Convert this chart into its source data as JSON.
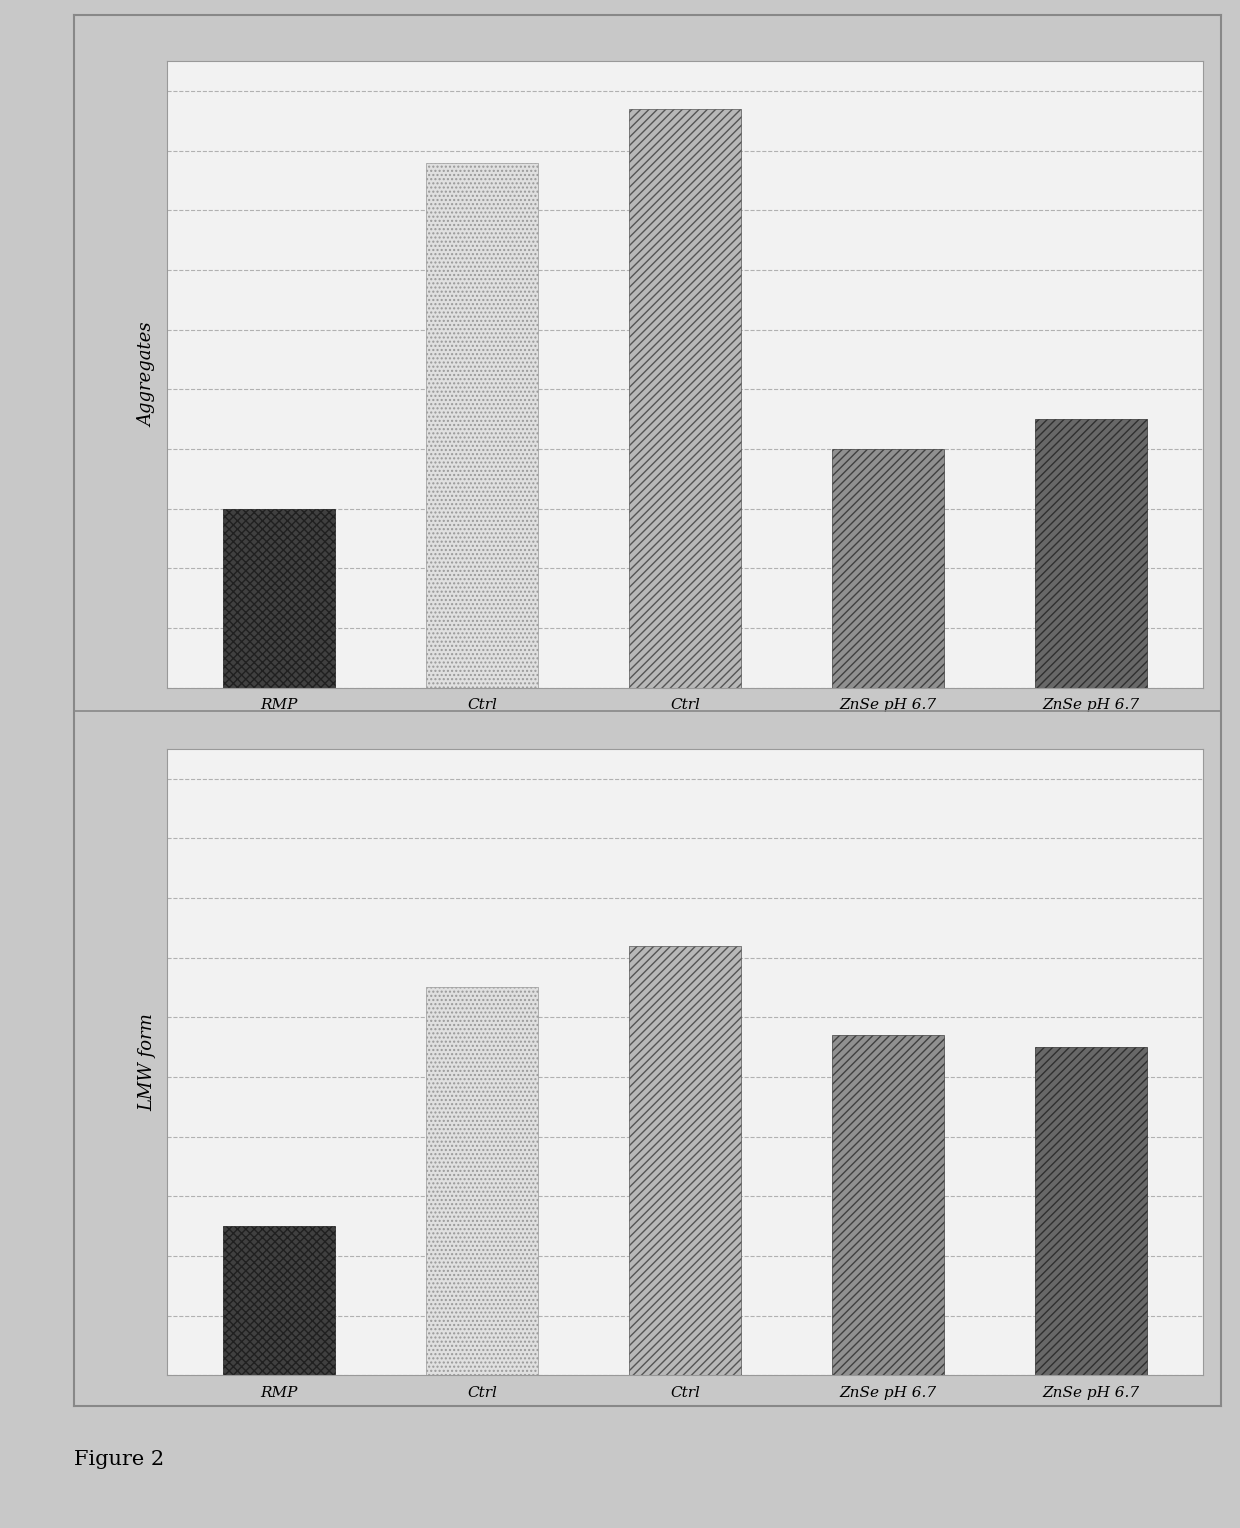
{
  "chart1": {
    "categories": [
      "RMP",
      "Ctrl",
      "Ctrl",
      "ZnSe pH 6.7",
      "ZnSe pH 6.7"
    ],
    "values": [
      0.3,
      0.88,
      0.97,
      0.4,
      0.45
    ],
    "bar_styles": [
      "dark",
      "light_dot",
      "hatch_diag",
      "hatch_med",
      "hatch_dark"
    ],
    "ylabel": "Aggregates"
  },
  "chart2": {
    "categories": [
      "RMP",
      "Ctrl",
      "Ctrl",
      "ZnSe pH 6.7",
      "ZnSe pH 6.7"
    ],
    "values": [
      0.25,
      0.65,
      0.72,
      0.57,
      0.55
    ],
    "bar_styles": [
      "dark",
      "light_dot",
      "hatch_diag",
      "hatch_med",
      "hatch_dark"
    ],
    "ylabel": "LMW form"
  },
  "figure_label": "Figure 2",
  "fig_bg": "#c8c8c8",
  "plot_bg": "#f2f2f2",
  "outer_border_color": "#888888",
  "grid_color": "#aaaaaa",
  "grid_style": "--",
  "bar_styles": {
    "dark": {
      "facecolor": "#404040",
      "hatch": "xxxx",
      "edgecolor": "#202020",
      "linewidth": 0.5
    },
    "light_dot": {
      "facecolor": "#e0e0e0",
      "hatch": "....",
      "edgecolor": "#999999",
      "linewidth": 0.5
    },
    "hatch_diag": {
      "facecolor": "#b8b8b8",
      "hatch": "////",
      "edgecolor": "#555555",
      "linewidth": 0.5
    },
    "hatch_med": {
      "facecolor": "#909090",
      "hatch": "////",
      "edgecolor": "#404040",
      "linewidth": 0.5
    },
    "hatch_dark": {
      "facecolor": "#686868",
      "hatch": "////",
      "edgecolor": "#303030",
      "linewidth": 0.5
    }
  },
  "xlabel_fontsize": 11,
  "ylabel_fontsize": 13,
  "figure_label_fontsize": 15
}
